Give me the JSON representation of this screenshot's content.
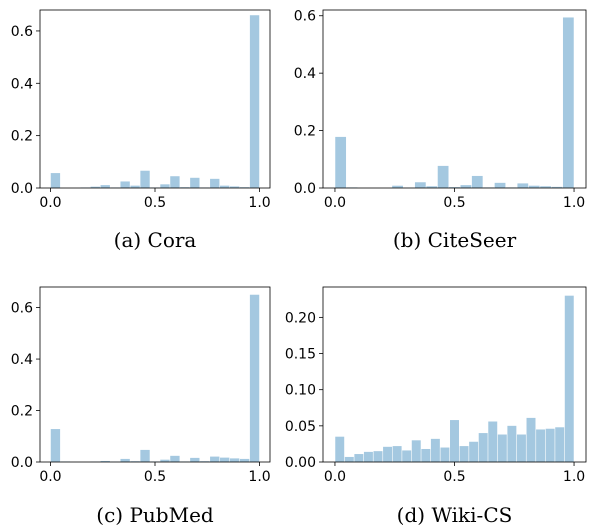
{
  "bar_color": "#a4c8e0",
  "chart_data": [
    {
      "type": "bar",
      "caption": "(a) Cora",
      "bin_edges_x": [
        0,
        1
      ],
      "xlim": [
        -0.05,
        1.05
      ],
      "ylim": [
        0,
        0.68
      ],
      "xticks": [
        0.0,
        0.5,
        1.0
      ],
      "xtick_labels": [
        "0.0",
        "0.5",
        "1.0"
      ],
      "yticks": [
        0.0,
        0.2,
        0.4,
        0.6
      ],
      "ytick_labels": [
        "0.0",
        "0.2",
        "0.4",
        "0.6"
      ],
      "values": [
        0.057,
        0,
        0,
        0.002,
        0.005,
        0.011,
        0.002,
        0.025,
        0.009,
        0.066,
        0.002,
        0.014,
        0.045,
        0.003,
        0.039,
        0.002,
        0.035,
        0.009,
        0.006,
        0.003,
        0.66
      ]
    },
    {
      "type": "bar",
      "caption": "(b) CiteSeer",
      "bin_edges_x": [
        0,
        1
      ],
      "xlim": [
        -0.05,
        1.05
      ],
      "ylim": [
        0,
        0.62
      ],
      "xticks": [
        0.0,
        0.5,
        1.0
      ],
      "xtick_labels": [
        "0.0",
        "0.5",
        "1.0"
      ],
      "yticks": [
        0.0,
        0.2,
        0.4,
        0.6
      ],
      "ytick_labels": [
        "0.0",
        "0.2",
        "0.4",
        "0.6"
      ],
      "values": [
        0.178,
        0.002,
        0,
        0,
        0,
        0.008,
        0.001,
        0.02,
        0.006,
        0.077,
        0.003,
        0.01,
        0.042,
        0.002,
        0.018,
        0.002,
        0.016,
        0.008,
        0.006,
        0.004,
        0.594
      ]
    },
    {
      "type": "bar",
      "caption": "(c) PubMed",
      "bin_edges_x": [
        0,
        1
      ],
      "xlim": [
        -0.05,
        1.05
      ],
      "ylim": [
        0,
        0.68
      ],
      "xticks": [
        0.0,
        0.5,
        1.0
      ],
      "xtick_labels": [
        "0.0",
        "0.5",
        "1.0"
      ],
      "yticks": [
        0.0,
        0.2,
        0.4,
        0.6
      ],
      "ytick_labels": [
        "0.0",
        "0.2",
        "0.4",
        "0.6"
      ],
      "values": [
        0.128,
        0.002,
        0,
        0,
        0.001,
        0.004,
        0.001,
        0.012,
        0.003,
        0.047,
        0.002,
        0.009,
        0.024,
        0.002,
        0.016,
        0.003,
        0.021,
        0.017,
        0.014,
        0.012,
        0.65
      ]
    },
    {
      "type": "bar",
      "caption": "(d) Wiki-CS",
      "bin_edges_x": [
        0,
        1
      ],
      "xlim": [
        -0.05,
        1.05
      ],
      "ylim": [
        0,
        0.242
      ],
      "xticks": [
        0.0,
        0.5,
        1.0
      ],
      "xtick_labels": [
        "0.0",
        "0.5",
        "1.0"
      ],
      "yticks": [
        0.0,
        0.05,
        0.1,
        0.15,
        0.2
      ],
      "ytick_labels": [
        "0.00",
        "0.05",
        "0.10",
        "0.15",
        "0.20"
      ],
      "values": [
        0.035,
        0.007,
        0.011,
        0.014,
        0.015,
        0.021,
        0.022,
        0.016,
        0.03,
        0.018,
        0.032,
        0.02,
        0.058,
        0.022,
        0.028,
        0.04,
        0.056,
        0.038,
        0.05,
        0.038,
        0.061,
        0.045,
        0.046,
        0.048,
        0.23
      ]
    }
  ]
}
